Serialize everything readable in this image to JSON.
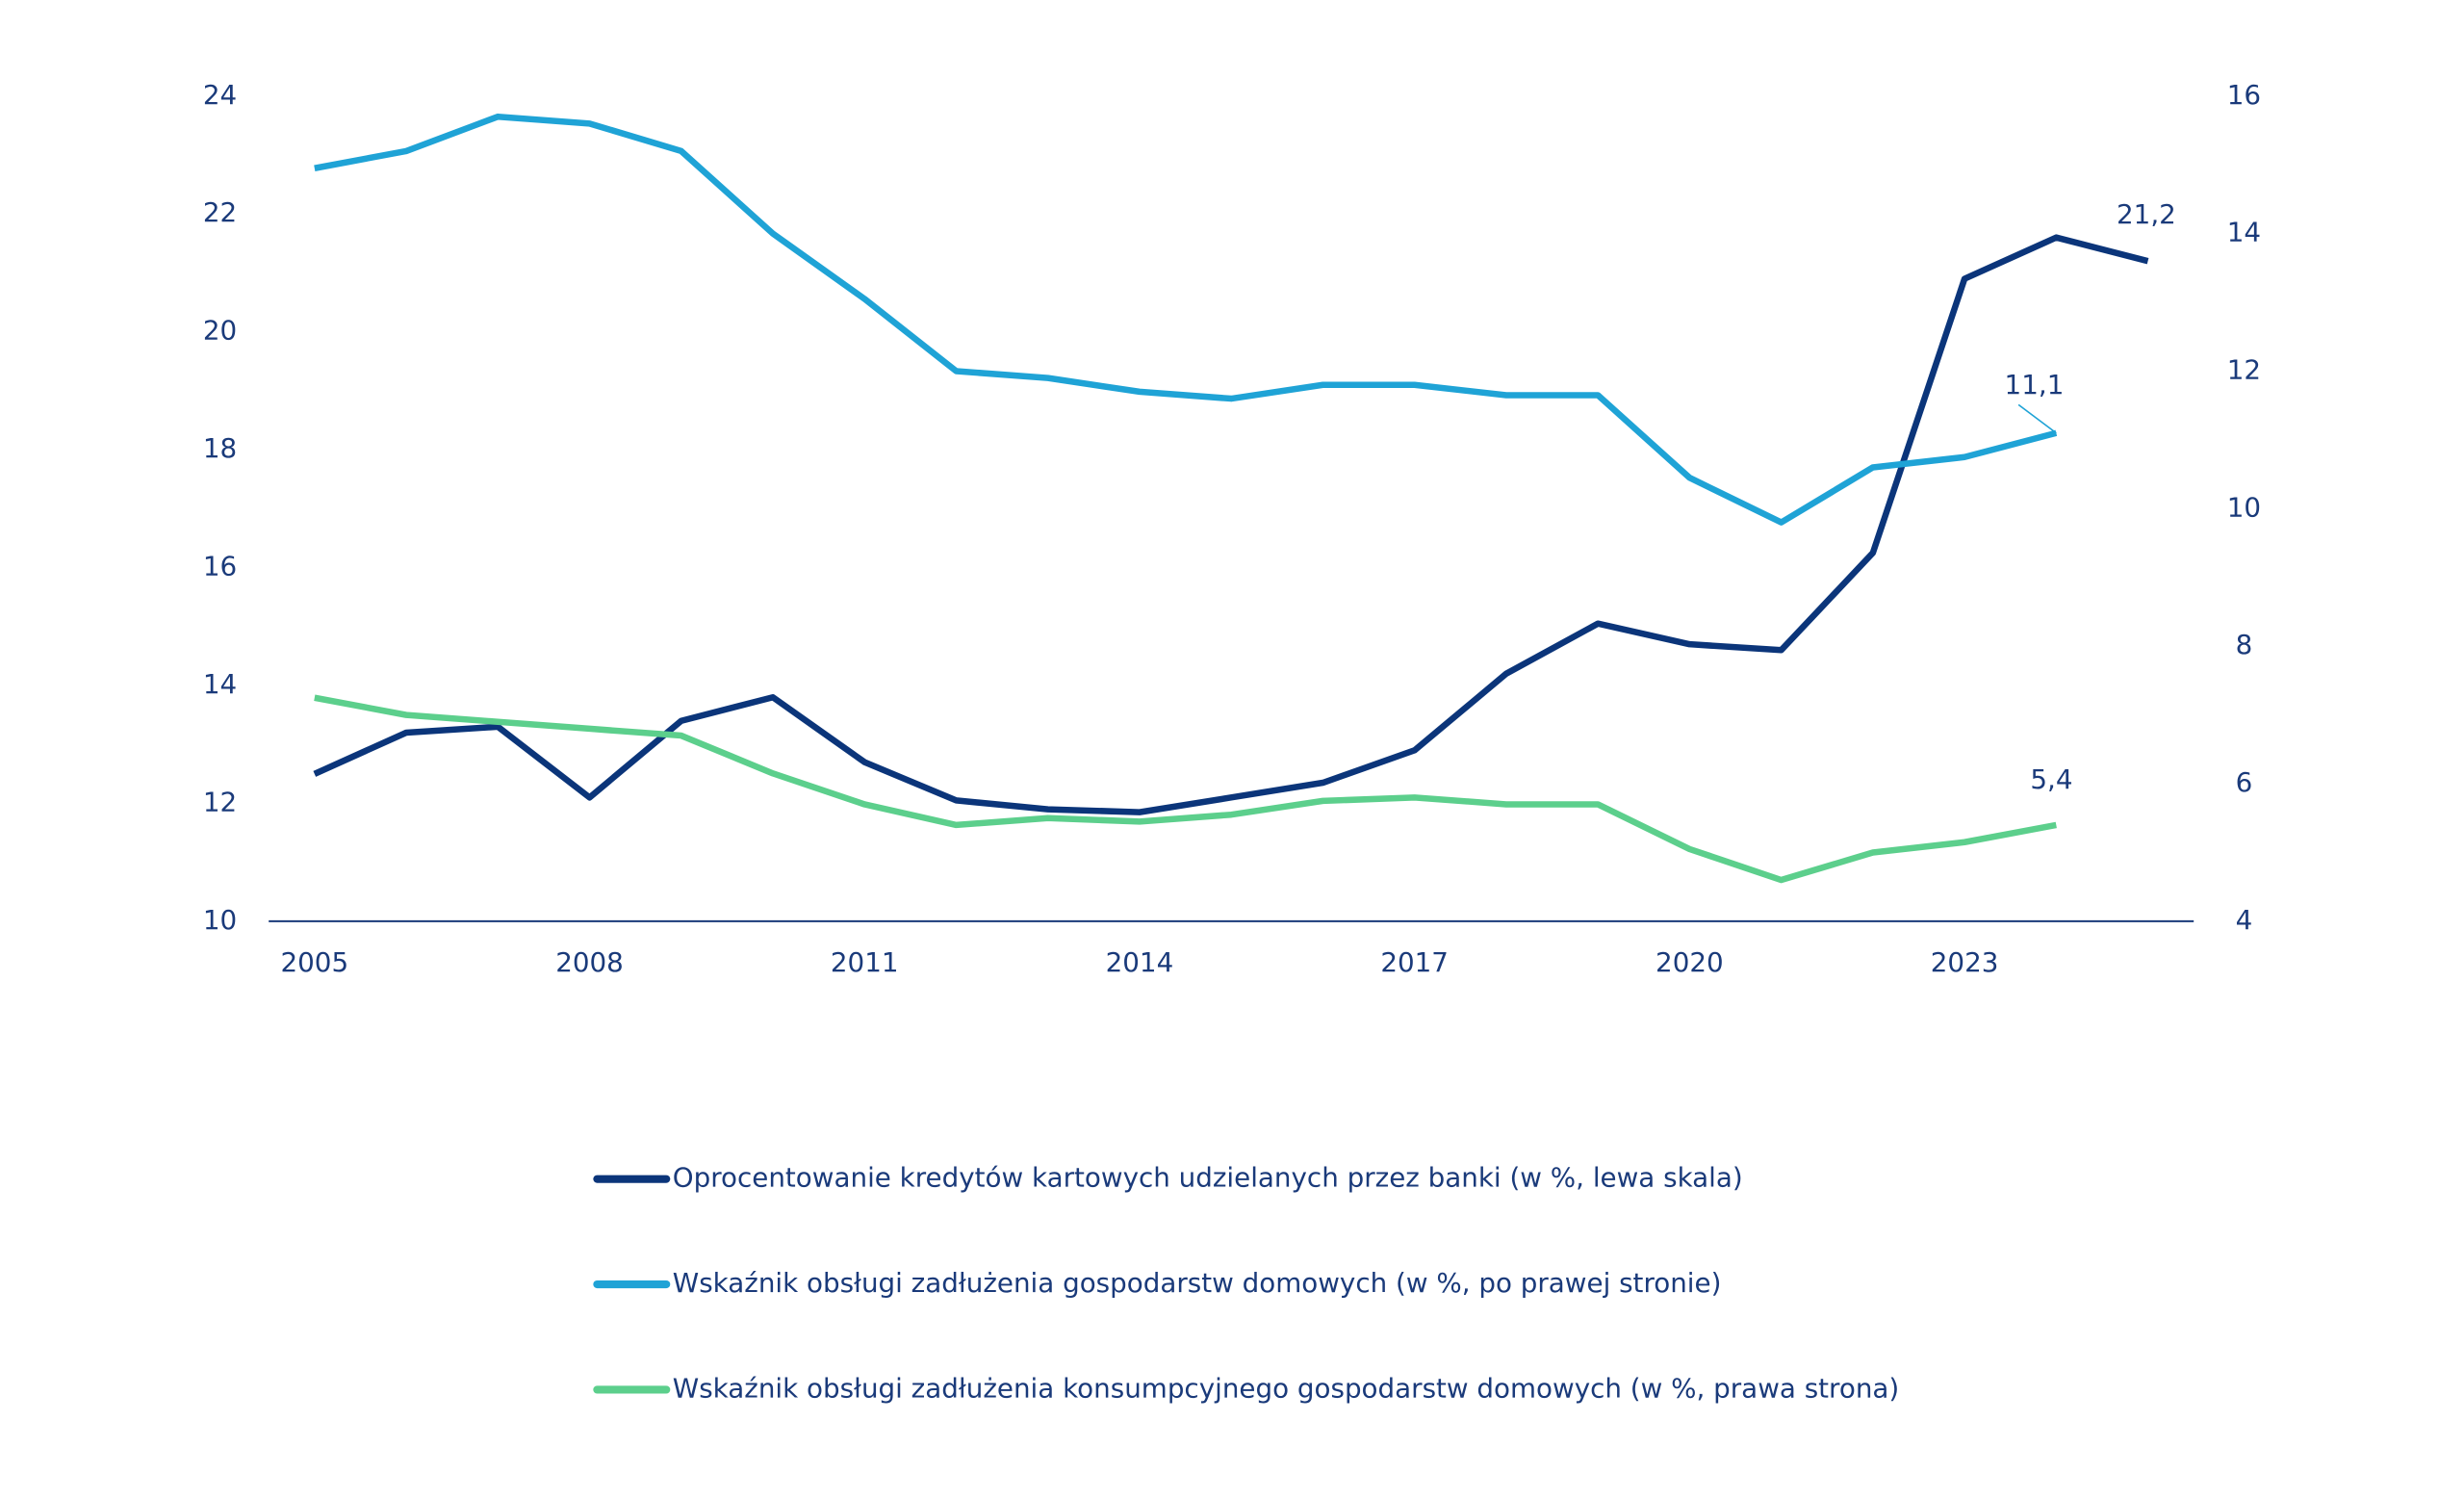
{
  "chart_data": {
    "type": "line",
    "x": [
      2005,
      2006,
      2007,
      2008,
      2009,
      2010,
      2011,
      2012,
      2013,
      2014,
      2015,
      2016,
      2017,
      2018,
      2019,
      2020,
      2021,
      2022,
      2023,
      2024,
      2025
    ],
    "xlim": [
      2004.5,
      2025.5
    ],
    "xticks": [
      2005,
      2008,
      2011,
      2014,
      2017,
      2020,
      2023
    ],
    "ylim": [
      10,
      24
    ],
    "yticks": [
      10,
      12,
      14,
      16,
      18,
      20,
      22,
      24
    ],
    "y2lim": [
      4,
      16
    ],
    "y2ticks": [
      4,
      6,
      8,
      10,
      12,
      14,
      16
    ],
    "series": [
      {
        "name": "Oprocentowanie kredytów kartowych udzielanych przez banki (w %, lewa skala)",
        "color": "#0b357a",
        "values": [
          12.5,
          13.2,
          13.3,
          12.1,
          13.4,
          13.8,
          12.7,
          12.05,
          11.9,
          11.85,
          12.1,
          12.35,
          12.9,
          14.2,
          15.05,
          14.7,
          14.6,
          16.25,
          20.9,
          21.6,
          21.2
        ],
        "value_labels": [
          null,
          null,
          null,
          null,
          null,
          null,
          null,
          null,
          null,
          null,
          null,
          null,
          null,
          null,
          null,
          null,
          null,
          null,
          null,
          null,
          "21,2"
        ]
      },
      {
        "name": "Wskaźnik obsługi zadłużenia gospodarstw domowych (w %, po prawej stronie)",
        "color": "#1fa3d6",
        "axis": "y2",
        "values": [
          14.95,
          15.2,
          15.7,
          15.6,
          15.2,
          14.0,
          13.05,
          12.0,
          11.9,
          11.7,
          11.6,
          11.8,
          11.8,
          11.65,
          11.65,
          10.45,
          9.8,
          10.6,
          10.75,
          11.1,
          null
        ],
        "value_labels": [
          null,
          null,
          null,
          null,
          null,
          null,
          null,
          null,
          null,
          null,
          null,
          null,
          null,
          null,
          null,
          null,
          null,
          null,
          null,
          "11,1",
          null
        ]
      },
      {
        "name": "Wskaźnik obsługi zadłużenia konsumpcyjnego gospodarstw domowych (w %, prawa strona)",
        "color": "#5ccf8c",
        "axis": "y2",
        "values": [
          7.25,
          7.0,
          6.9,
          6.8,
          6.7,
          6.15,
          5.7,
          5.4,
          5.5,
          5.45,
          5.55,
          5.75,
          5.8,
          5.7,
          5.7,
          5.05,
          4.6,
          5.0,
          5.15,
          5.4,
          null
        ],
        "value_labels": [
          null,
          null,
          null,
          null,
          null,
          null,
          null,
          null,
          null,
          null,
          null,
          null,
          null,
          null,
          null,
          null,
          null,
          null,
          null,
          "5,4",
          null
        ]
      }
    ]
  }
}
